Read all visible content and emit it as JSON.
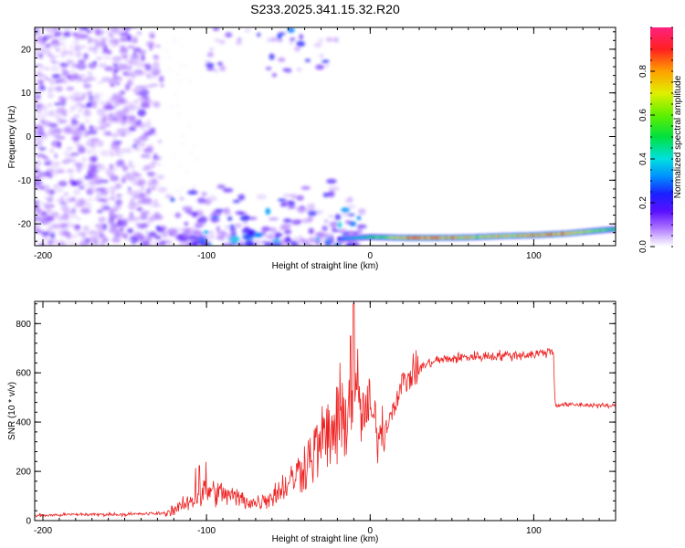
{
  "title": "S233.2025.341.15.32.R20",
  "colors": {
    "snr_line": "#ee2222",
    "spectrogram_low": "#8c3cf0",
    "background": "#ffffff"
  },
  "chart_data": [
    {
      "type": "heatmap",
      "name": "spectrogram",
      "xlabel": "Height of straight line (km)",
      "ylabel": "Frequency (Hz)",
      "xlim": [
        -205,
        150
      ],
      "ylim": [
        -25,
        25
      ],
      "x_ticks": [
        -200,
        -100,
        0,
        100
      ],
      "x_tick_labels": [
        "-200",
        "-100",
        "0",
        "100"
      ],
      "y_ticks": [
        20,
        10,
        0,
        -10,
        -20
      ],
      "y_tick_labels": [
        "20",
        "10",
        "0",
        "-10",
        "-20"
      ],
      "features": {
        "noise_region_x": [
          -205,
          -125
        ],
        "upper_blobs_x": [
          -100,
          -20
        ],
        "lower_scattered_x": [
          -130,
          -5
        ],
        "main_band": {
          "x": [
            -20,
            0,
            20,
            40,
            60,
            80,
            100,
            120,
            140,
            150
          ],
          "frequency": [
            -23.5,
            -23,
            -23.2,
            -23.2,
            -23.1,
            -22.8,
            -22.6,
            -22.2,
            -21.5,
            -21.2
          ],
          "amplitude": [
            0.3,
            0.5,
            0.85,
            0.9,
            0.7,
            0.75,
            0.8,
            0.85,
            0.6,
            0.5
          ]
        }
      },
      "colorbar": {
        "label": "Normalized spectral amplitude",
        "range": [
          0,
          1
        ],
        "ticks": [
          0.0,
          0.2,
          0.4,
          0.6,
          0.8
        ],
        "tick_labels": [
          "0.0",
          "0.2",
          "0.4",
          "0.6",
          "0.8"
        ]
      }
    },
    {
      "type": "line",
      "name": "snr",
      "xlabel": "Height of straight line (km)",
      "ylabel": "SNR (10 * v/v)",
      "xlim": [
        -205,
        150
      ],
      "ylim": [
        0,
        890
      ],
      "x_ticks": [
        -200,
        -100,
        0,
        100
      ],
      "x_tick_labels": [
        "-200",
        "-100",
        "0",
        "100"
      ],
      "y_ticks": [
        0,
        200,
        400,
        600,
        800
      ],
      "y_tick_labels": [
        "0",
        "200",
        "400",
        "600",
        "800"
      ],
      "series": [
        {
          "name": "SNR",
          "x": [
            -205,
            -180,
            -150,
            -125,
            -115,
            -100,
            -90,
            -80,
            -70,
            -60,
            -50,
            -40,
            -30,
            -20,
            -12,
            -10,
            -5,
            0,
            5,
            10,
            15,
            20,
            30,
            40,
            60,
            80,
            100,
            112,
            113,
            130,
            150
          ],
          "values": [
            20,
            25,
            25,
            30,
            60,
            120,
            110,
            90,
            70,
            100,
            150,
            230,
            320,
            380,
            480,
            520,
            430,
            450,
            350,
            380,
            480,
            560,
            620,
            650,
            665,
            670,
            675,
            690,
            470,
            470,
            465
          ]
        }
      ]
    }
  ]
}
